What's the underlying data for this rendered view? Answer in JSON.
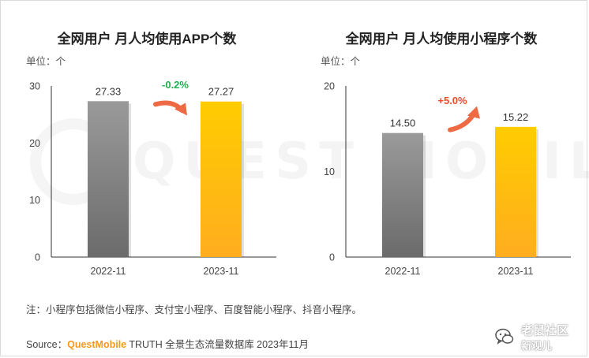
{
  "chart_data": [
    {
      "type": "bar",
      "title": "全网用户 月人均使用APP个数",
      "unit_label": "单位：个",
      "categories": [
        "2022-11",
        "2023-11"
      ],
      "values": [
        27.33,
        27.27
      ],
      "value_labels": [
        "27.33",
        "27.27"
      ],
      "ylim": [
        0,
        30
      ],
      "yticks": [
        "0",
        "10",
        "20",
        "30"
      ],
      "change_label": "-0.2%",
      "change_color": "#21b04b",
      "bar_colors": [
        "#8c8c8c",
        "#ffc000"
      ]
    },
    {
      "type": "bar",
      "title": "全网用户 月人均使用小程序个数",
      "unit_label": "单位：个",
      "categories": [
        "2022-11",
        "2023-11"
      ],
      "values": [
        14.5,
        15.22
      ],
      "value_labels": [
        "14.50",
        "15.22"
      ],
      "ylim": [
        0,
        20
      ],
      "yticks": [
        "0",
        "10",
        "20"
      ],
      "change_label": "+5.0%",
      "change_color": "#ee4b2b",
      "bar_colors": [
        "#8c8c8c",
        "#ffc000"
      ]
    }
  ],
  "note": "注：小程序包括微信小程序、支付宝小程序、百度智能小程序、抖音小程序。",
  "source": {
    "prefix": "Source：",
    "brand": "QuestMobile",
    "suffix": " TRUTH 全景生态流量数据库 2023年11月"
  },
  "watermark": {
    "text": "QUEST MOBILE"
  },
  "badge": {
    "line1": "老鼠社区",
    "line2": "新观儿"
  },
  "colors": {
    "arrow": "#ee6a45"
  }
}
